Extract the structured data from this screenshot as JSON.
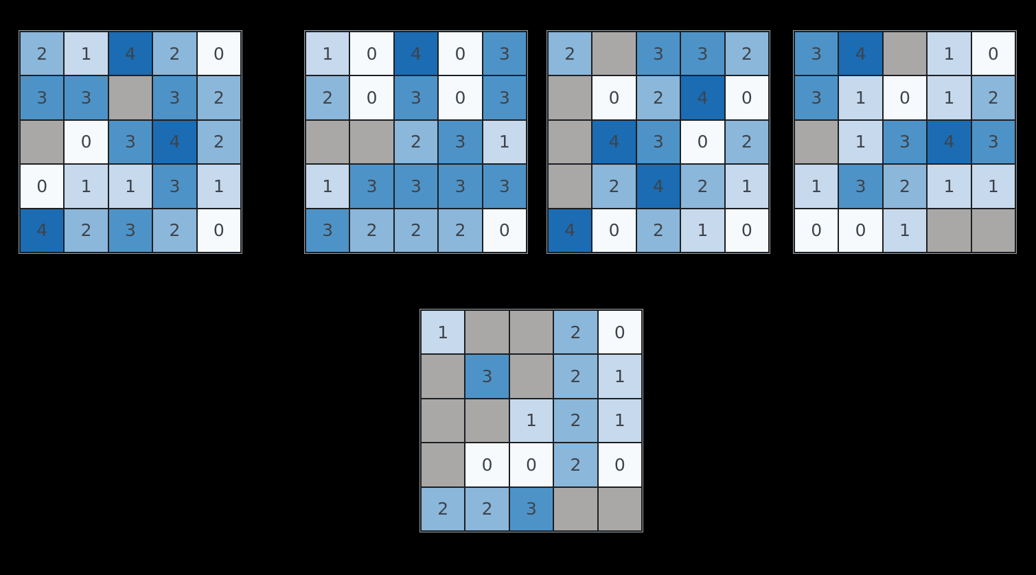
{
  "figure": {
    "background": "#000000",
    "grid_line_color": "#1b1e22",
    "outer_frame_color": "#9aa0a3",
    "cell_text_color": "#3d434b"
  },
  "palette": {
    "colormap_name": "Blues",
    "values": {
      "0": "#f7fafd",
      "1": "#c7d9ec",
      "2": "#8bb7da",
      "3": "#4e93c7",
      "4": "#1b6cb3"
    },
    "missing": "#a9a8a7"
  },
  "chart_data": [
    {
      "type": "heatmap",
      "name": "heatmap-grid-1",
      "rows": 5,
      "cols": 5,
      "value_range": [
        0,
        4
      ],
      "title": "",
      "values": [
        [
          2,
          1,
          4,
          2,
          0
        ],
        [
          3,
          3,
          null,
          3,
          2
        ],
        [
          null,
          0,
          3,
          4,
          2
        ],
        [
          0,
          1,
          1,
          3,
          1
        ],
        [
          4,
          2,
          3,
          2,
          0
        ]
      ]
    },
    {
      "type": "heatmap",
      "name": "heatmap-grid-2",
      "rows": 5,
      "cols": 5,
      "value_range": [
        0,
        4
      ],
      "title": "",
      "values": [
        [
          1,
          0,
          4,
          0,
          3
        ],
        [
          2,
          0,
          3,
          0,
          3
        ],
        [
          null,
          null,
          2,
          3,
          1
        ],
        [
          1,
          3,
          3,
          3,
          3
        ],
        [
          3,
          2,
          2,
          2,
          0
        ]
      ]
    },
    {
      "type": "heatmap",
      "name": "heatmap-grid-3",
      "rows": 5,
      "cols": 5,
      "value_range": [
        0,
        4
      ],
      "title": "",
      "values": [
        [
          2,
          null,
          3,
          3,
          2
        ],
        [
          null,
          0,
          2,
          4,
          0
        ],
        [
          null,
          4,
          3,
          0,
          2
        ],
        [
          null,
          2,
          4,
          2,
          1
        ],
        [
          4,
          0,
          2,
          1,
          0
        ]
      ]
    },
    {
      "type": "heatmap",
      "name": "heatmap-grid-4",
      "rows": 5,
      "cols": 5,
      "value_range": [
        0,
        4
      ],
      "title": "",
      "values": [
        [
          3,
          4,
          null,
          1,
          0
        ],
        [
          3,
          1,
          0,
          1,
          2
        ],
        [
          null,
          1,
          3,
          4,
          3
        ],
        [
          1,
          3,
          2,
          1,
          1
        ],
        [
          0,
          0,
          1,
          null,
          null
        ]
      ]
    },
    {
      "type": "heatmap",
      "name": "heatmap-grid-5",
      "rows": 5,
      "cols": 5,
      "value_range": [
        0,
        4
      ],
      "title": "",
      "values": [
        [
          1,
          null,
          null,
          2,
          0
        ],
        [
          null,
          3,
          null,
          2,
          1
        ],
        [
          null,
          null,
          1,
          2,
          1
        ],
        [
          null,
          0,
          0,
          2,
          0
        ],
        [
          2,
          2,
          3,
          null,
          null
        ]
      ]
    }
  ]
}
